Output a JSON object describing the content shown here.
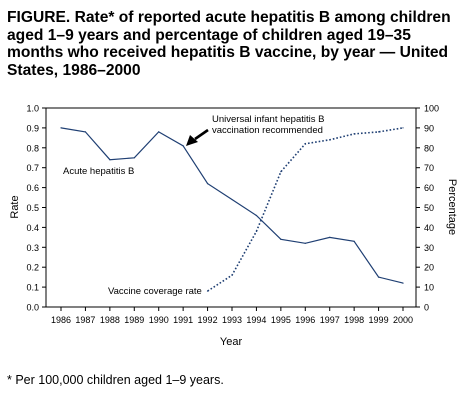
{
  "figure": {
    "title": "FIGURE. Rate* of reported acute hepatitis B among children aged 1–9 years and percentage of children aged 19–35 months who received hepatitis B vaccine, by year — United States, 1986–2000",
    "footnote": "* Per 100,000 children aged 1–9 years."
  },
  "chart_data": {
    "type": "line",
    "title": "",
    "xlabel": "Year",
    "ylabel": "Rate",
    "y2label": "Percentage",
    "x": [
      "1986",
      "1987",
      "1988",
      "1989",
      "1990",
      "1991",
      "1992",
      "1993",
      "1994",
      "1995",
      "1996",
      "1997",
      "1998",
      "1999",
      "2000"
    ],
    "ylim": [
      0,
      1.0
    ],
    "y2lim": [
      0,
      100
    ],
    "yticks": [
      "0.0",
      "0.1",
      "0.2",
      "0.3",
      "0.4",
      "0.5",
      "0.6",
      "0.7",
      "0.8",
      "0.9",
      "1.0"
    ],
    "y2ticks": [
      "0",
      "10",
      "20",
      "30",
      "40",
      "50",
      "60",
      "70",
      "80",
      "90",
      "100"
    ],
    "grid": false,
    "series": [
      {
        "name": "Acute hepatitis B",
        "axis": "left",
        "style": "solid",
        "values": [
          0.9,
          0.88,
          0.74,
          0.75,
          0.88,
          0.81,
          0.62,
          0.54,
          0.46,
          0.34,
          0.32,
          0.35,
          0.33,
          0.15,
          0.12
        ]
      },
      {
        "name": "Vaccine coverage rate",
        "axis": "right",
        "style": "dotted",
        "values": [
          null,
          null,
          null,
          null,
          null,
          null,
          8,
          16,
          38,
          68,
          82,
          84,
          87,
          88,
          90
        ]
      }
    ],
    "annotations": [
      {
        "text_lines": [
          "Universal infant hepatitis B",
          "vaccination recommended"
        ],
        "points_to": "1991"
      }
    ],
    "colors": {
      "line": "#1f3f73",
      "text": "#000000"
    }
  }
}
